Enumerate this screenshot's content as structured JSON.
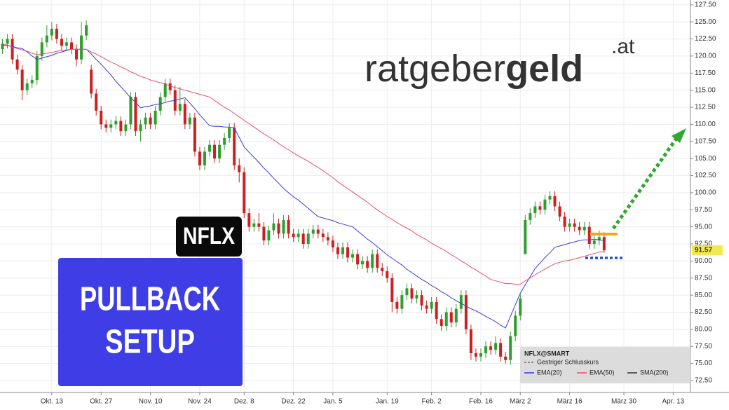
{
  "logo": {
    "part1": "ratgeber",
    "part2": "geld",
    "part3": ".at"
  },
  "badges": {
    "ticker": "NFLX",
    "setup_line1": "PULLBACK",
    "setup_line2": "SETUP"
  },
  "legend": {
    "title": "NFLX@SMART",
    "previous_close": "Gestriger Schlusskurs",
    "sma": "SMA(200)"
  },
  "chart_data": {
    "type": "candlestick",
    "up_color": "#2e9e2e",
    "down_color": "#cc1f1f",
    "grid": true,
    "categories": [
      null,
      null,
      null,
      null,
      null,
      null,
      null,
      null,
      null,
      null,
      "Okt. 13",
      null,
      null,
      null,
      null,
      null,
      null,
      null,
      null,
      null,
      "Okt. 27",
      null,
      null,
      null,
      null,
      null,
      null,
      null,
      null,
      null,
      "Nov. 10",
      null,
      null,
      null,
      null,
      null,
      null,
      null,
      null,
      null,
      "Nov. 24",
      null,
      null,
      null,
      null,
      null,
      null,
      null,
      null,
      "Dez. 8",
      null,
      null,
      null,
      null,
      null,
      null,
      null,
      null,
      null,
      "Dez. 22",
      null,
      null,
      null,
      null,
      null,
      null,
      null,
      "Jan. 5",
      null,
      null,
      null,
      null,
      null,
      null,
      null,
      null,
      null,
      null,
      "Jan. 19",
      null,
      null,
      null,
      null,
      null,
      null,
      null,
      null,
      "Feb. 2",
      null,
      null,
      null,
      null,
      null,
      null,
      null,
      null,
      null,
      "Feb. 16",
      null,
      null,
      null,
      null,
      null,
      null,
      null,
      "März 2",
      null,
      null,
      null,
      null,
      null,
      null,
      null,
      null,
      null,
      "März 16",
      null,
      null,
      null,
      null,
      null,
      null,
      null,
      null,
      null,
      null,
      "März 30",
      null,
      null,
      null,
      null,
      null,
      null,
      null,
      null,
      null,
      "Apr. 13",
      null,
      null,
      null
    ],
    "open": [
      121,
      121.8,
      122.5,
      119.5,
      118,
      115,
      116,
      116.5,
      120,
      122,
      123,
      124,
      122.5,
      121.5,
      122,
      121,
      119.5,
      123,
      118,
      114.5,
      112,
      110,
      109.5,
      110,
      110.5,
      109,
      110,
      114,
      109,
      110,
      111,
      110,
      112,
      114,
      116,
      115,
      112,
      113,
      110,
      111,
      106,
      104,
      106,
      107,
      105,
      107,
      108,
      109.5,
      104,
      103,
      97,
      95,
      95.5,
      95,
      93,
      94.5,
      95.5,
      94,
      96,
      94,
      93.5,
      94,
      92.5,
      94,
      94.6,
      94,
      93.5,
      93,
      92,
      91,
      92,
      90.5,
      91,
      89.5,
      90,
      89,
      91,
      89,
      88.5,
      87.5,
      84,
      83,
      85,
      86,
      84.5,
      85,
      83.5,
      83,
      84,
      81.5,
      80.5,
      82.5,
      81,
      83,
      85,
      80,
      76.5,
      76,
      76.5,
      77.5,
      77,
      78,
      76,
      75.5,
      79,
      82,
      91,
      96,
      97,
      98,
      97.5,
      99,
      99.5,
      98,
      96.5,
      95,
      95.5,
      95,
      94.5,
      95,
      92.5,
      93,
      93.5,
      null,
      null,
      null,
      null,
      null,
      null,
      null,
      null,
      null,
      null,
      null,
      null,
      null,
      null,
      null,
      null,
      null
    ],
    "high": [
      122.5,
      123.2,
      123.2,
      120.2,
      118.7,
      116.7,
      117.2,
      120.7,
      122.7,
      124.5,
      125,
      124.7,
      123.2,
      122.7,
      122.7,
      121.7,
      125,
      125.2,
      118.7,
      115.2,
      112.7,
      110.7,
      110.7,
      111.2,
      111.2,
      110.7,
      114.7,
      114.7,
      110.7,
      111.7,
      111.7,
      112.7,
      114.7,
      116.7,
      116.7,
      115.7,
      115.5,
      113.7,
      111.7,
      111.7,
      106.7,
      106.7,
      107.7,
      107.7,
      107.7,
      108.7,
      110.2,
      110.2,
      105,
      103.7,
      97.7,
      96.2,
      97,
      95.7,
      95.2,
      97,
      96.2,
      96.7,
      96.7,
      94.7,
      94.7,
      94.7,
      94.7,
      95.3,
      95.3,
      94.7,
      94.2,
      93.7,
      92.7,
      92.7,
      92.7,
      91.7,
      91.7,
      90.7,
      90.7,
      91.7,
      91.7,
      89.7,
      89.2,
      88.2,
      84.7,
      85.7,
      86.7,
      86.7,
      85.7,
      85.7,
      84.2,
      84.7,
      84.7,
      82.2,
      83.2,
      83.2,
      83.7,
      85.7,
      85.7,
      80.7,
      77.2,
      77.2,
      78.2,
      78.2,
      79,
      78.7,
      76.7,
      79.7,
      82.7,
      85.2,
      96.7,
      97.7,
      98.7,
      98.7,
      99.7,
      100.2,
      100.2,
      98.7,
      97.2,
      96.2,
      96.2,
      95.7,
      95.7,
      95.7,
      93.7,
      94.5,
      94.2,
      null,
      null,
      null,
      null,
      null,
      null,
      null,
      null,
      null,
      null,
      null,
      null,
      null,
      null,
      null,
      null,
      null
    ],
    "low": [
      120.3,
      121.1,
      118.8,
      117.3,
      113.5,
      114.3,
      115.3,
      115.8,
      119.3,
      121.3,
      122.3,
      121.8,
      120.8,
      120.8,
      120.3,
      118.5,
      118.8,
      122.3,
      113.8,
      111.3,
      109.3,
      108.8,
      108.8,
      109.3,
      108.3,
      108.3,
      109.3,
      108.3,
      107.5,
      109.3,
      109.3,
      109.3,
      111.3,
      113.3,
      114.3,
      111.3,
      111.3,
      109.3,
      109.3,
      105.3,
      103.3,
      103.3,
      105.3,
      104.3,
      104.3,
      106.3,
      107.3,
      103.3,
      101.5,
      96.3,
      94.3,
      94.3,
      94.3,
      92.3,
      92.3,
      93.8,
      93.3,
      93.3,
      93.3,
      92.8,
      92.8,
      91.8,
      91.8,
      93.3,
      93.3,
      92.8,
      92.3,
      91.3,
      90.3,
      90.3,
      89.8,
      89.8,
      88.8,
      88.8,
      88.3,
      88.3,
      88.3,
      87.8,
      86.8,
      82.5,
      82.3,
      82.3,
      84.3,
      83.8,
      83.8,
      82.8,
      82.3,
      82.3,
      80.8,
      79.8,
      79.8,
      80.3,
      80.3,
      82.3,
      79.3,
      75.5,
      75.3,
      75.3,
      75.8,
      76.3,
      76.3,
      75.3,
      75,
      74.8,
      78.3,
      81.3,
      91,
      95.3,
      96.3,
      96.8,
      96.8,
      98.3,
      97.3,
      95.8,
      94.3,
      94.3,
      94.3,
      93.8,
      93.8,
      91.8,
      91.8,
      92.3,
      91.2,
      null,
      null,
      null,
      null,
      null,
      null,
      null,
      null,
      null,
      null,
      null,
      null,
      null,
      null,
      null,
      null,
      null
    ],
    "close": [
      121.8,
      122.5,
      119.5,
      118,
      115,
      116,
      116.5,
      120,
      122,
      123,
      124,
      122.5,
      121.5,
      122,
      121,
      119.5,
      123,
      124.5,
      114.5,
      112,
      110,
      109.5,
      110,
      110.5,
      109,
      110,
      114,
      109,
      110,
      111,
      110,
      112,
      114,
      116,
      115,
      112,
      113,
      110,
      111,
      106,
      104,
      106,
      107,
      105,
      107,
      108,
      109.5,
      104,
      103,
      97,
      95,
      95.5,
      95,
      93,
      94.5,
      95.5,
      94,
      96,
      94,
      93.5,
      94,
      92.5,
      94,
      94.6,
      94,
      93.5,
      93,
      92,
      91,
      92,
      90.5,
      91,
      89.5,
      90,
      89,
      91,
      89,
      88.5,
      87.5,
      84,
      83,
      85,
      86,
      84.5,
      85,
      83.5,
      83,
      84,
      81.5,
      80.5,
      82.5,
      81,
      83,
      85,
      80,
      76.5,
      76,
      76.5,
      77.5,
      77,
      78,
      76,
      75.5,
      79,
      82,
      84.5,
      96,
      97,
      98,
      97.5,
      99,
      99.5,
      98,
      96.5,
      95,
      95.5,
      95,
      94.5,
      95,
      92.5,
      93,
      93.5,
      91.57,
      null,
      null,
      null,
      null,
      null,
      null,
      null,
      null,
      null,
      null,
      null,
      null,
      null,
      null,
      null,
      null,
      null
    ],
    "series": [
      {
        "name": "EMA(20)",
        "color": "#3a3ae0",
        "values": [
          121.6,
          121.5,
          121.4,
          121.2,
          121.1,
          120.6,
          120.0,
          119.5,
          119.7,
          119.9,
          120.1,
          120.4,
          120.6,
          120.8,
          121.0,
          121.0,
          121.0,
          121.0,
          120.3,
          119.5,
          118.8,
          118.0,
          117.2,
          116.3,
          115.5,
          114.7,
          113.9,
          113.2,
          112.4,
          112.6,
          112.7,
          112.9,
          113.0,
          113.2,
          113.4,
          113.5,
          113.7,
          113.9,
          113.1,
          112.3,
          111.4,
          110.6,
          109.8,
          109.7,
          109.7,
          109.6,
          109.6,
          109.5,
          108.1,
          106.7,
          105.9,
          105.2,
          104.4,
          103.6,
          102.9,
          102.1,
          101.4,
          100.6,
          100.0,
          99.4,
          98.9,
          98.3,
          97.7,
          97.1,
          96.5,
          96.3,
          96.1,
          95.9,
          95.6,
          95.4,
          95.2,
          95.0,
          94.4,
          93.8,
          93.2,
          92.7,
          92.1,
          91.5,
          90.9,
          90.4,
          89.9,
          89.4,
          88.8,
          88.3,
          87.8,
          87.3,
          86.9,
          86.4,
          86.0,
          85.5,
          85.1,
          84.6,
          84.2,
          83.8,
          83.4,
          83.0,
          82.7,
          82.3,
          81.9,
          81.5,
          81.1,
          80.6,
          80.2,
          81.9,
          83.6,
          85.3,
          86.5,
          87.7,
          88.9,
          89.7,
          90.5,
          91.2,
          92.0,
          92.2,
          92.4,
          92.6,
          92.8,
          93.0,
          93.1,
          93.1,
          93.2,
          93.1,
          93.0,
          null,
          null,
          null,
          null,
          null,
          null,
          null,
          null,
          null,
          null,
          null,
          null,
          null,
          null,
          null,
          null,
          null
        ]
      },
      {
        "name": "EMA(50)",
        "color": "#e8506a",
        "values": [
          121.8,
          121.6,
          121.3,
          121.1,
          120.9,
          120.7,
          120.4,
          120.2,
          120.3,
          120.4,
          120.5,
          120.7,
          120.8,
          120.9,
          121.0,
          121.0,
          121.0,
          121.0,
          120.6,
          120.3,
          119.9,
          119.5,
          119.1,
          118.8,
          118.4,
          118.1,
          117.7,
          117.4,
          117.0,
          116.8,
          116.5,
          116.3,
          116.1,
          115.9,
          115.6,
          115.4,
          115.2,
          115.0,
          114.8,
          114.6,
          114.4,
          114.2,
          114.0,
          113.5,
          113.0,
          112.5,
          112.1,
          111.6,
          111.1,
          110.6,
          110.1,
          109.6,
          109.1,
          108.6,
          108.2,
          107.7,
          107.2,
          106.7,
          106.3,
          105.8,
          105.4,
          105.0,
          104.6,
          104.1,
          103.7,
          103.2,
          102.7,
          102.2,
          101.6,
          101.1,
          100.6,
          100.1,
          99.6,
          99.1,
          98.6,
          98.0,
          97.5,
          97.0,
          96.5,
          96.1,
          95.6,
          95.2,
          94.8,
          94.4,
          93.9,
          93.5,
          93.1,
          92.6,
          92.2,
          91.8,
          91.4,
          90.9,
          90.5,
          90.0,
          89.6,
          89.1,
          88.7,
          88.2,
          87.8,
          87.3,
          87.1,
          86.9,
          86.7,
          86.7,
          86.6,
          86.6,
          87.1,
          87.5,
          88.0,
          88.4,
          88.8,
          89.2,
          89.6,
          89.8,
          90.0,
          90.1,
          90.3,
          90.5,
          90.7,
          90.9,
          91.1,
          91.3,
          91.4,
          null,
          null,
          null,
          null,
          null,
          null,
          null,
          null,
          null,
          null,
          null,
          null,
          null,
          null,
          null,
          null,
          null
        ]
      }
    ],
    "ylim": [
      71,
      128.2
    ],
    "yticks": [
      {
        "value": 72.5,
        "label": "72.50"
      },
      {
        "value": 75,
        "label": "75.00"
      },
      {
        "value": 77.5,
        "label": "77.50"
      },
      {
        "value": 80,
        "label": "80.00"
      },
      {
        "value": 82.5,
        "label": "82.50"
      },
      {
        "value": 85,
        "label": "85.00"
      },
      {
        "value": 87.5,
        "label": "87.50"
      },
      {
        "value": 90,
        "label": "90.00"
      },
      {
        "value": 92.5,
        "label": "92.50"
      },
      {
        "value": 95,
        "label": "95.00"
      },
      {
        "value": 97.5,
        "label": "97.50"
      },
      {
        "value": 100,
        "label": "100.00"
      },
      {
        "value": 102.5,
        "label": "102.50"
      },
      {
        "value": 105,
        "label": "105.00"
      },
      {
        "value": 107.5,
        "label": "107.50"
      },
      {
        "value": 110,
        "label": "110.00"
      },
      {
        "value": 112.5,
        "label": "112.50"
      },
      {
        "value": 115,
        "label": "115.00"
      },
      {
        "value": 117.5,
        "label": "117.50"
      },
      {
        "value": 120,
        "label": "120.00"
      },
      {
        "value": 122.5,
        "label": "122.50"
      },
      {
        "value": 125,
        "label": "125.00"
      },
      {
        "value": 127.5,
        "label": "127.50"
      }
    ]
  }
}
